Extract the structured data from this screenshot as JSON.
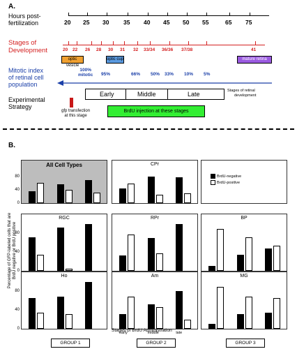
{
  "section_a": {
    "label": "A.",
    "hours_label_1": "Hours post-",
    "hours_label_2": "fertilization",
    "hours": [
      "20",
      "25",
      "30",
      "35",
      "40",
      "45",
      "50",
      "55",
      "65",
      "75"
    ],
    "stages_label_1": "Stages of",
    "stages_label_2": "Development",
    "stages": [
      "20",
      "22",
      "26",
      "28",
      "30",
      "31",
      "32",
      "33/34",
      "36/36",
      "37/38",
      "41"
    ],
    "optic_vesicle": "optic vesicle",
    "optic_cup": "optic cup",
    "mature_retina": "mature retina",
    "mitotic_label_1": "Mitotic index",
    "mitotic_label_2": "of retinal cell",
    "mitotic_label_3": "population",
    "mitotic_first_1": "100%",
    "mitotic_first_2": "mitotic",
    "mitotic_values": [
      "95%",
      "66%",
      "50%",
      "33%",
      "10%",
      "5%"
    ],
    "phase_early": "Early",
    "phase_middle": "Middle",
    "phase_late": "Late",
    "stages_retinal_1": "Stages of retinal",
    "stages_retinal_2": "development",
    "experimental_1": "Experimental",
    "experimental_2": "Strategy",
    "transfection_1": "gfp transfection",
    "transfection_2": "at this stage",
    "brdu_injection": "BrdU injection at these stages",
    "colors": {
      "red": "#d42020",
      "blue": "#1a3fa8",
      "orange": "#f0a030",
      "lightblue": "#5a9ae0",
      "purple": "#9a5ae0",
      "green": "#33ee33",
      "darkred": "#c81818"
    }
  },
  "section_b": {
    "label": "B.",
    "ylabel_1": "Percentage of GFP-labeled cells that are",
    "ylabel_2": "BrdU negative or BrdU positive",
    "xlabel": "Stages of BrdU Administration",
    "legend_neg": "BrdU-negative",
    "legend_pos": "BrdU-positive",
    "yticks": [
      "80",
      "40",
      "0"
    ],
    "groups": [
      "GROUP 1",
      "GROUP 2",
      "GROUP 3"
    ]
  },
  "chart_data": {
    "type": "bar",
    "categories": [
      "early",
      "middle",
      "late"
    ],
    "ylim": [
      0,
      100
    ],
    "panels": [
      {
        "title": "All Cell Types",
        "neg": [
          36,
          58,
          70
        ],
        "pos": [
          62,
          40,
          33
        ]
      },
      {
        "title": "CPr",
        "neg": [
          45,
          80,
          78
        ],
        "pos": [
          60,
          26,
          30
        ]
      },
      {
        "title": "",
        "neg": [
          0,
          0,
          0
        ],
        "pos": [
          0,
          0,
          0
        ]
      },
      {
        "title": "RGC",
        "neg": [
          72,
          92,
          100
        ],
        "pos": [
          35,
          5,
          0
        ]
      },
      {
        "title": "RPr",
        "neg": [
          33,
          70,
          100
        ],
        "pos": [
          77,
          38,
          0
        ]
      },
      {
        "title": "BP",
        "neg": [
          10,
          35,
          48
        ],
        "pos": [
          90,
          72,
          54
        ]
      },
      {
        "title": "Ho",
        "neg": [
          66,
          68,
          100
        ],
        "pos": [
          35,
          32,
          0
        ]
      },
      {
        "title": "Am",
        "neg": [
          32,
          52,
          80
        ],
        "pos": [
          68,
          46,
          20
        ]
      },
      {
        "title": "MG",
        "neg": [
          10,
          32,
          34
        ],
        "pos": [
          90,
          68,
          66
        ]
      }
    ]
  }
}
